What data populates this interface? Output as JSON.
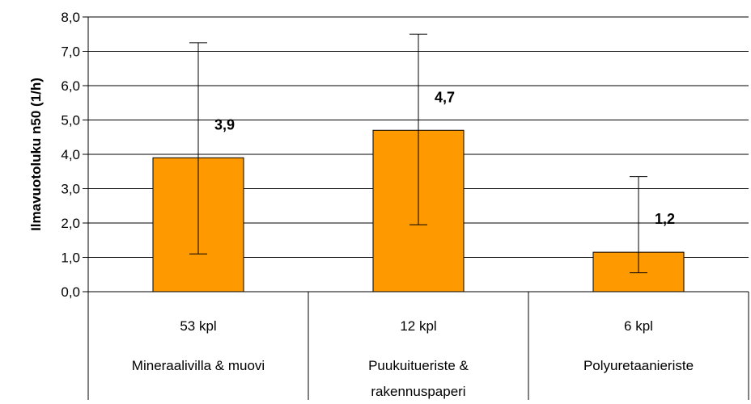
{
  "chart_data": {
    "type": "bar",
    "categories": [
      {
        "count": "53 kpl",
        "name_lines": [
          "Mineraalivilla & muovi"
        ]
      },
      {
        "count": "12 kpl",
        "name_lines": [
          "Puukuitueriste &",
          "rakennuspaperi"
        ]
      },
      {
        "count": "6 kpl",
        "name_lines": [
          "Polyuretaanieriste"
        ]
      }
    ],
    "values": [
      3.9,
      4.7,
      1.15
    ],
    "data_labels": [
      "3,9",
      "4,7",
      "1,2"
    ],
    "error_bars": [
      {
        "low": 1.1,
        "high": 7.25
      },
      {
        "low": 1.95,
        "high": 7.5
      },
      {
        "low": 0.55,
        "high": 3.35
      }
    ],
    "ylabel": "Ilmavuotoluku n50 (1/h)",
    "ylim": [
      0,
      8
    ],
    "yticks": [
      0,
      1,
      2,
      3,
      4,
      5,
      6,
      7,
      8
    ],
    "ytick_labels": [
      "0,0",
      "1,0",
      "2,0",
      "3,0",
      "4,0",
      "5,0",
      "6,0",
      "7,0",
      "8,0"
    ],
    "grid": true,
    "bar_color": "#FF9900",
    "bar_edge_color": "#000000"
  }
}
